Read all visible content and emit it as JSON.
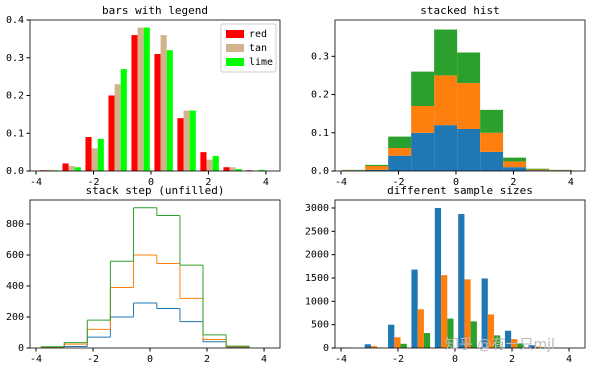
{
  "chart_data": [
    {
      "type": "histogram",
      "histtype": "bar",
      "title": "bars with legend",
      "legend": "upper right",
      "bins": [
        -3.96,
        -3.16,
        -2.36,
        -1.56,
        -0.76,
        0.04,
        0.84,
        1.64,
        2.44,
        3.24,
        4.04
      ],
      "series": [
        {
          "name": "red",
          "color": "#ff0000",
          "values": [
            0.002,
            0.02,
            0.09,
            0.2,
            0.36,
            0.31,
            0.14,
            0.05,
            0.01,
            0.002
          ]
        },
        {
          "name": "tan",
          "color": "#d2b48c",
          "values": [
            0.003,
            0.013,
            0.06,
            0.23,
            0.38,
            0.36,
            0.16,
            0.03,
            0.01,
            0
          ]
        },
        {
          "name": "lime",
          "color": "#00ff00",
          "values": [
            0.002,
            0.01,
            0.085,
            0.27,
            0.38,
            0.32,
            0.16,
            0.04,
            0.005,
            0.003
          ]
        }
      ],
      "xlim": [
        -4.21,
        4.49
      ],
      "xticks": [
        -4,
        -2,
        0,
        2,
        4
      ],
      "ylim": [
        0,
        0.4
      ],
      "yticks": [
        {
          "value": 0,
          "label": "0.0"
        },
        0.1,
        0.2,
        0.3,
        0.4
      ]
    },
    {
      "type": "histogram",
      "histtype": "barstacked",
      "title": "stacked hist",
      "bins": [
        -3.96,
        -3.16,
        -2.36,
        -1.56,
        -0.76,
        0.04,
        0.84,
        1.64,
        2.44,
        3.24,
        4.04
      ],
      "series": [
        {
          "color": "#1f77b4",
          "values": [
            0.001,
            0.003,
            0.04,
            0.1,
            0.12,
            0.11,
            0.05,
            0.01,
            0.002,
            0.001
          ]
        },
        {
          "color": "#ff7f0e",
          "values": [
            0.001,
            0.01,
            0.02,
            0.07,
            0.13,
            0.12,
            0.05,
            0.015,
            0.002,
            0.001
          ]
        },
        {
          "color": "#2ca02c",
          "values": [
            0.001,
            0.003,
            0.03,
            0.09,
            0.12,
            0.08,
            0.06,
            0.01,
            0.002,
            0.001
          ]
        }
      ],
      "xlim": [
        -4.21,
        4.49
      ],
      "xticks": [
        -4,
        -2,
        0,
        2,
        4
      ],
      "ylim": [
        0,
        0.395
      ],
      "yticks": [
        {
          "value": 0,
          "label": "0.0"
        },
        0.1,
        0.2,
        0.3
      ]
    },
    {
      "type": "histogram",
      "histtype": "step",
      "stacked": true,
      "title": "stack step (unfilled)",
      "bins": [
        -3.82,
        -3.01,
        -2.2,
        -1.39,
        -0.58,
        0.24,
        1.05,
        1.86,
        2.67,
        3.48
      ],
      "series": [
        {
          "color": "#1f77b4",
          "values": [
            3,
            10,
            70,
            200,
            290,
            255,
            170,
            40,
            5
          ]
        },
        {
          "color": "#ff7f0e",
          "values": [
            2,
            15,
            50,
            190,
            310,
            290,
            150,
            15,
            3
          ]
        },
        {
          "color": "#2ca02c",
          "values": [
            3,
            10,
            60,
            170,
            305,
            310,
            215,
            30,
            4
          ]
        }
      ],
      "xlim": [
        -4.21,
        4.56
      ],
      "xticks": [
        -4,
        -2,
        0,
        2,
        4
      ],
      "ylim": [
        0,
        955
      ],
      "yticks": [
        0,
        200,
        400,
        600,
        800
      ]
    },
    {
      "type": "histogram",
      "histtype": "bar",
      "title": "different sample sizes",
      "bins": [
        -4.07,
        -3.25,
        -2.43,
        -1.61,
        -0.79,
        0.03,
        0.85,
        1.67,
        2.49,
        3.31,
        4.13
      ],
      "series": [
        {
          "color": "#1f77b4",
          "values": [
            10,
            80,
            500,
            1680,
            3000,
            2870,
            1490,
            370,
            60,
            5
          ]
        },
        {
          "color": "#ff7f0e",
          "values": [
            5,
            40,
            230,
            830,
            1560,
            1470,
            720,
            190,
            30,
            3
          ]
        },
        {
          "color": "#2ca02c",
          "values": [
            0,
            10,
            90,
            320,
            630,
            570,
            270,
            100,
            15,
            2
          ]
        }
      ],
      "xlim": [
        -4.21,
        4.56
      ],
      "xticks": [
        -4,
        -2,
        0,
        2,
        4
      ],
      "ylim": [
        0,
        3171
      ],
      "yticks": [
        0,
        500,
        1000,
        1500,
        2000,
        2500,
        3000
      ]
    }
  ],
  "watermark": "知乎 @有一只mjl"
}
